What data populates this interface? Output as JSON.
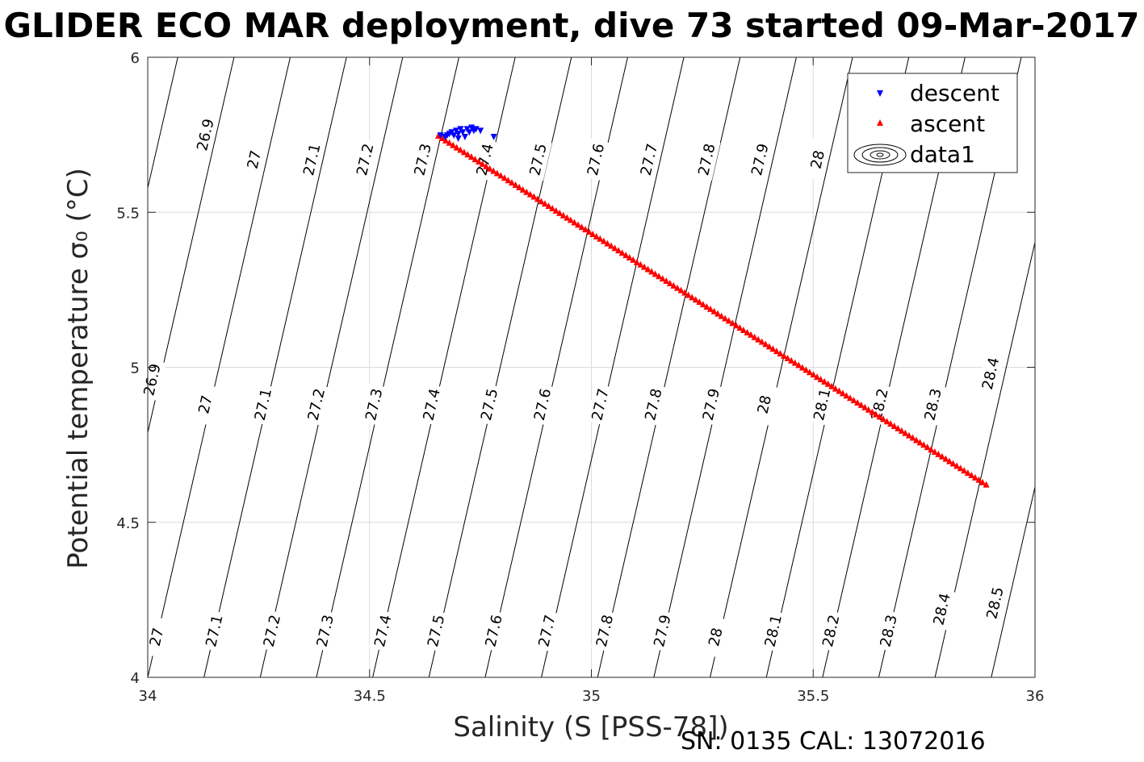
{
  "chart_data": {
    "type": "scatter",
    "title": "GLIDER ECO MAR deployment, dive 73 started 09-Mar-2017",
    "xlabel": "Salinity (S [PSS-78])",
    "ylabel": "Potential temperature σ₀ (°C)",
    "xlim": [
      34,
      36
    ],
    "ylim": [
      4,
      6
    ],
    "xticks": [
      "34",
      "34.5",
      "35",
      "35.5",
      "36"
    ],
    "yticks": [
      "4",
      "4.5",
      "5",
      "5.5",
      "6"
    ],
    "grid": true,
    "legend_position": "top-right",
    "legend": [
      "descent",
      "ascent",
      "data1"
    ],
    "contour_levels": [
      26.9,
      27.0,
      27.1,
      27.2,
      27.3,
      27.4,
      27.5,
      27.6,
      27.7,
      27.8,
      27.9,
      28.0,
      28.1,
      28.2,
      28.3,
      28.4,
      28.5
    ],
    "contour_labels": [
      {
        "text": "26.9",
        "x": 34.13,
        "y": 5.75
      },
      {
        "text": "27",
        "x": 34.24,
        "y": 5.67
      },
      {
        "text": "27.1",
        "x": 34.37,
        "y": 5.67
      },
      {
        "text": "27.2",
        "x": 34.49,
        "y": 5.67
      },
      {
        "text": "27.3",
        "x": 34.62,
        "y": 5.67
      },
      {
        "text": "27.4",
        "x": 34.76,
        "y": 5.67
      },
      {
        "text": "27.5",
        "x": 34.88,
        "y": 5.67
      },
      {
        "text": "27.6",
        "x": 35.01,
        "y": 5.67
      },
      {
        "text": "27.7",
        "x": 35.13,
        "y": 5.67
      },
      {
        "text": "27.8",
        "x": 35.26,
        "y": 5.67
      },
      {
        "text": "27.9",
        "x": 35.38,
        "y": 5.67
      },
      {
        "text": "28",
        "x": 35.51,
        "y": 5.67
      },
      {
        "text": "26.9",
        "x": 34.01,
        "y": 4.96
      },
      {
        "text": "27",
        "x": 34.13,
        "y": 4.88
      },
      {
        "text": "27.1",
        "x": 34.26,
        "y": 4.88
      },
      {
        "text": "27.2",
        "x": 34.38,
        "y": 4.88
      },
      {
        "text": "27.3",
        "x": 34.51,
        "y": 4.88
      },
      {
        "text": "27.4",
        "x": 34.64,
        "y": 4.88
      },
      {
        "text": "27.5",
        "x": 34.77,
        "y": 4.88
      },
      {
        "text": "27.6",
        "x": 34.89,
        "y": 4.88
      },
      {
        "text": "27.7",
        "x": 35.02,
        "y": 4.88
      },
      {
        "text": "27.8",
        "x": 35.14,
        "y": 4.88
      },
      {
        "text": "27.9",
        "x": 35.27,
        "y": 4.88
      },
      {
        "text": "28",
        "x": 35.39,
        "y": 4.88
      },
      {
        "text": "28.1",
        "x": 35.52,
        "y": 4.88
      },
      {
        "text": "28.2",
        "x": 35.65,
        "y": 4.88
      },
      {
        "text": "28.3",
        "x": 35.77,
        "y": 4.88
      },
      {
        "text": "28.4",
        "x": 35.9,
        "y": 4.98
      },
      {
        "text": "27",
        "x": 34.02,
        "y": 4.13
      },
      {
        "text": "27.1",
        "x": 34.15,
        "y": 4.15
      },
      {
        "text": "27.2",
        "x": 34.28,
        "y": 4.15
      },
      {
        "text": "27.3",
        "x": 34.4,
        "y": 4.15
      },
      {
        "text": "27.4",
        "x": 34.53,
        "y": 4.15
      },
      {
        "text": "27.5",
        "x": 34.65,
        "y": 4.15
      },
      {
        "text": "27.6",
        "x": 34.78,
        "y": 4.15
      },
      {
        "text": "27.7",
        "x": 34.9,
        "y": 4.15
      },
      {
        "text": "27.8",
        "x": 35.03,
        "y": 4.15
      },
      {
        "text": "27.9",
        "x": 35.16,
        "y": 4.15
      },
      {
        "text": "28",
        "x": 35.28,
        "y": 4.13
      },
      {
        "text": "28.1",
        "x": 35.41,
        "y": 4.15
      },
      {
        "text": "28.2",
        "x": 35.54,
        "y": 4.15
      },
      {
        "text": "28.3",
        "x": 35.67,
        "y": 4.15
      },
      {
        "text": "28.4",
        "x": 35.79,
        "y": 4.22
      },
      {
        "text": "28.5",
        "x": 35.91,
        "y": 4.24
      }
    ],
    "series": [
      {
        "name": "descent",
        "marker": "triangle-down",
        "color": "#0000ff",
        "points": [
          [
            34.66,
            5.75
          ],
          [
            34.67,
            5.745
          ],
          [
            34.675,
            5.75
          ],
          [
            34.68,
            5.755
          ],
          [
            34.685,
            5.76
          ],
          [
            34.69,
            5.75
          ],
          [
            34.695,
            5.765
          ],
          [
            34.7,
            5.755
          ],
          [
            34.7,
            5.74
          ],
          [
            34.705,
            5.77
          ],
          [
            34.71,
            5.76
          ],
          [
            34.715,
            5.745
          ],
          [
            34.72,
            5.77
          ],
          [
            34.725,
            5.76
          ],
          [
            34.73,
            5.775
          ],
          [
            34.735,
            5.765
          ],
          [
            34.74,
            5.77
          ],
          [
            34.75,
            5.765
          ],
          [
            34.78,
            5.745
          ]
        ]
      },
      {
        "name": "ascent",
        "marker": "triangle-up",
        "color": "#ff0000",
        "start": [
          34.655,
          5.745
        ],
        "end": [
          35.89,
          4.62
        ],
        "count": 150
      }
    ]
  },
  "footer": "SN: 0135  CAL: 13072016"
}
